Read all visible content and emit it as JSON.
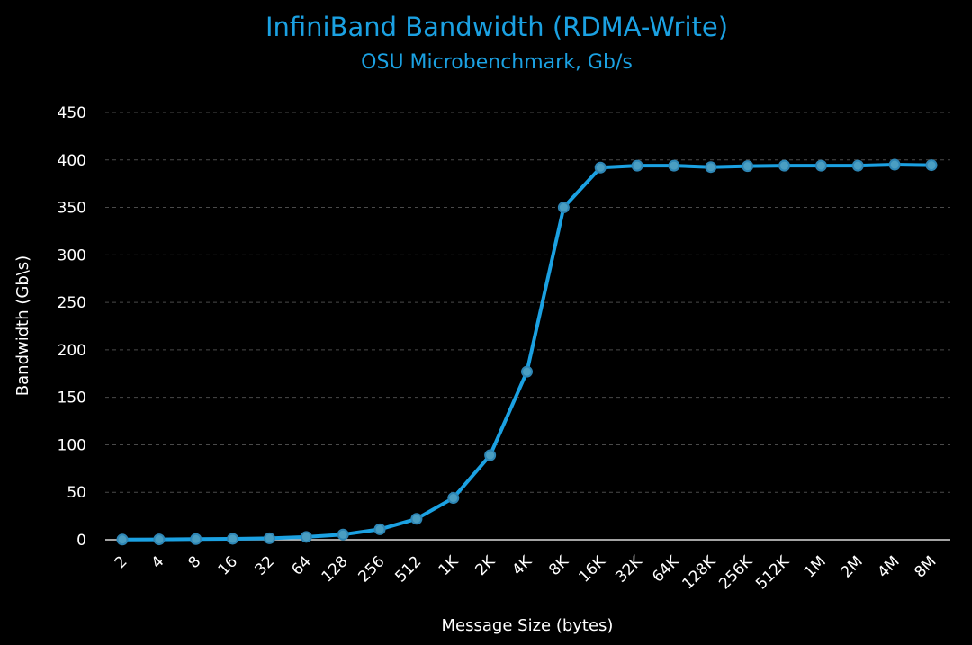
{
  "chart_data": {
    "type": "line",
    "title": "InfiniBand Bandwidth (RDMA-Write)",
    "subtitle": "OSU Microbenchmark, Gb/s",
    "xlabel": "Message Size (bytes)",
    "ylabel": "Bandwidth (Gb\\s)",
    "categories": [
      "2",
      "4",
      "8",
      "16",
      "32",
      "64",
      "128",
      "256",
      "512",
      "1K",
      "2K",
      "4K",
      "8K",
      "16K",
      "32K",
      "64K",
      "128K",
      "256K",
      "512K",
      "1M",
      "2M",
      "4M",
      "8M"
    ],
    "ylim": [
      0,
      450
    ],
    "yticks": [
      0,
      50,
      100,
      150,
      200,
      250,
      300,
      350,
      400,
      450
    ],
    "grid": true,
    "legend": "none",
    "series": [
      {
        "values": [
          0.2,
          0.4,
          0.7,
          1.0,
          1.5,
          3,
          5.5,
          11,
          22,
          44,
          89,
          177,
          350,
          392,
          394,
          394,
          392.5,
          393.5,
          394,
          394,
          394,
          395,
          394.5
        ]
      }
    ],
    "colors": {
      "line": "#1BA1E2",
      "marker_fill": "#4A9EC2",
      "marker_stroke": "#2E86B5",
      "title": "#1BA1E2",
      "text": "#FFFFFF",
      "background": "#000000"
    }
  }
}
